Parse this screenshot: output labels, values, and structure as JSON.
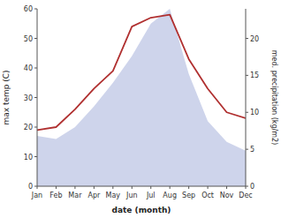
{
  "chart_data": {
    "type": "line",
    "x_label": "date (month)",
    "y_label": "max temp (C)",
    "y2_label": "med. precipitation (kg/m2)",
    "categories": [
      "Jan",
      "Feb",
      "Mar",
      "Apr",
      "May",
      "Jun",
      "Jul",
      "Aug",
      "Sep",
      "Oct",
      "Nov",
      "Dec"
    ],
    "series": [
      {
        "type": "area",
        "color": "#c5cce8",
        "values": [
          17,
          16,
          20,
          27,
          35,
          44,
          55,
          60,
          38,
          22,
          15,
          12
        ]
      },
      {
        "type": "line",
        "color": "#b03030",
        "values": [
          19,
          20,
          26,
          33,
          39,
          54,
          57,
          58,
          43,
          33,
          25,
          23
        ]
      }
    ],
    "ylim": [
      0,
      60
    ],
    "yticks": [
      0,
      10,
      20,
      30,
      40,
      50,
      60
    ],
    "y2lim": [
      0,
      24
    ],
    "y2ticks": [
      0,
      5,
      10,
      15,
      20
    ],
    "grid": false
  }
}
